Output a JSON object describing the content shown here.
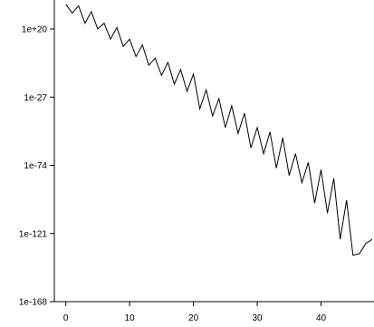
{
  "chart_data": {
    "type": "line",
    "title": "",
    "xlabel": "",
    "ylabel": "",
    "y_scale": "log",
    "xlim": [
      -1.8,
      48.3
    ],
    "ylim_log10": [
      -168,
      40
    ],
    "x_ticks": [
      0,
      10,
      20,
      30,
      40
    ],
    "y_ticks": [
      {
        "label": "1e+20",
        "log10": 20
      },
      {
        "label": "1e-27",
        "log10": -27
      },
      {
        "label": "1e-74",
        "log10": -74
      },
      {
        "label": "1e-121",
        "log10": -121
      },
      {
        "label": "1e-168",
        "log10": -168
      }
    ],
    "grid": false,
    "legend": "none",
    "series": [
      {
        "color": "#000000",
        "x": [
          0,
          1,
          2,
          3,
          4,
          5,
          6,
          7,
          8,
          9,
          10,
          11,
          12,
          13,
          14,
          15,
          16,
          17,
          18,
          19,
          20,
          21,
          22,
          23,
          24,
          25,
          26,
          27,
          28,
          29,
          30,
          31,
          32,
          33,
          34,
          35,
          36,
          37,
          38,
          39,
          40,
          41,
          42,
          43,
          44,
          45,
          46,
          47,
          48
        ],
        "y_log10": [
          37,
          31,
          36,
          24,
          32,
          20,
          24,
          13,
          21,
          8,
          13,
          1,
          9,
          -5,
          0,
          -12,
          -3,
          -18,
          -8,
          -23,
          -11,
          -35,
          -22,
          -40,
          -28,
          -48,
          -33,
          -52,
          -38,
          -62,
          -48,
          -66,
          -51,
          -76,
          -55,
          -81,
          -66,
          -86,
          -72,
          -100,
          -77,
          -107,
          -83,
          -125,
          -98,
          -136,
          -135,
          -128,
          -125
        ]
      }
    ]
  }
}
